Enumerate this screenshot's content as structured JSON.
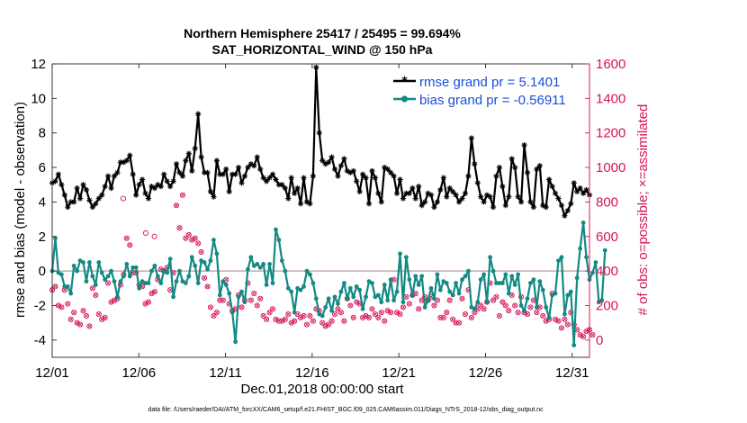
{
  "chart_data": {
    "type": "line",
    "title_line1": "Northern Hemisphere 25417 / 25495 = 99.694%",
    "title_line2": "SAT_HORIZONTAL_WIND @ 150 hPa",
    "xlabel": "Dec.01,2018 00:00:00 start",
    "ylabel_left": "rmse and bias (model - observation)",
    "ylabel_right": "# of obs: o=possible; ×=assimilated",
    "footnote": "data file: /Users/raeder/DAI/ATM_forcXX/CAM6_setup/f.e21.FHIST_BGC.f09_025.CAM6assim.011/Diags_NTrS_2018-12/obs_diag_output.nc",
    "xlim": [
      0,
      31
    ],
    "x_ticks": [
      0,
      5,
      10,
      15,
      20,
      25,
      30
    ],
    "x_tick_labels": [
      "12/01",
      "12/06",
      "12/11",
      "12/16",
      "12/21",
      "12/26",
      "12/31"
    ],
    "ylim_left": [
      -5,
      12
    ],
    "y_ticks_left": [
      -4,
      -2,
      0,
      2,
      4,
      6,
      8,
      10,
      12
    ],
    "ylim_right": [
      -100,
      1600
    ],
    "y_ticks_right": [
      0,
      200,
      400,
      600,
      800,
      1000,
      1200,
      1400,
      1600
    ],
    "colors": {
      "rmse": "#000000",
      "bias": "#138a84",
      "obs": "#d5145a",
      "zero_line": "#c8a9a9",
      "legend_text": "#1a4fd6"
    },
    "legend": {
      "placement": "top-right",
      "entries": [
        "rmse grand pr = 5.1401",
        "bias grand pr = -0.56911"
      ]
    },
    "series": [
      {
        "name": "rmse grand pr = 5.1401",
        "color": "#000000",
        "marker": "asterisk",
        "values": [
          5.1,
          5.2,
          5.6,
          5.0,
          4.4,
          3.7,
          4.0,
          4.0,
          4.8,
          4.2,
          5.0,
          4.7,
          4.1,
          3.7,
          3.9,
          4.2,
          4.4,
          4.9,
          5.5,
          4.8,
          5.5,
          5.7,
          6.3,
          6.3,
          6.4,
          6.7,
          5.6,
          4.4,
          5.0,
          5.3,
          4.5,
          4.2,
          4.9,
          4.8,
          5.0,
          4.9,
          5.6,
          5.2,
          4.9,
          5.2,
          6.2,
          5.7,
          5.5,
          6.4,
          6.8,
          5.8,
          7.1,
          9.1,
          6.6,
          5.7,
          5.7,
          4.6,
          4.3,
          6.4,
          5.6,
          5.6,
          5.9,
          4.6,
          5.6,
          5.6,
          6.0,
          5.1,
          5.5,
          6.0,
          6.2,
          6.1,
          6.6,
          5.9,
          5.4,
          5.2,
          5.4,
          5.6,
          5.3,
          5.0,
          5.0,
          4.8,
          4.2,
          5.4,
          4.5,
          4.8,
          3.9,
          5.4,
          4.0,
          3.9,
          5.5,
          11.8,
          8.0,
          6.4,
          6.2,
          6.3,
          6.6,
          5.9,
          5.5,
          6.1,
          6.5,
          5.8,
          5.7,
          5.8,
          5.2,
          4.6,
          5.6,
          5.4,
          3.9,
          5.8,
          5.4,
          4.5,
          4.0,
          6.0,
          5.9,
          5.7,
          5.5,
          4.5,
          5.3,
          4.2,
          4.5,
          4.5,
          4.8,
          4.2,
          4.9,
          3.8,
          4.0,
          4.5,
          4.4,
          3.7,
          4.0,
          4.7,
          5.4,
          4.3,
          4.8,
          4.6,
          4.4,
          4.0,
          4.2,
          4.5,
          5.5,
          7.7,
          6.2,
          5.1,
          4.3,
          4.0,
          4.4,
          4.3,
          3.7,
          5.5,
          6.0,
          4.9,
          3.8,
          4.3,
          6.5,
          6.0,
          4.3,
          4.0,
          7.3,
          5.7,
          4.0,
          3.7,
          5.9,
          6.1,
          3.8,
          3.7,
          5.3,
          4.9,
          4.5,
          4.2,
          3.8,
          3.2,
          3.5,
          3.9,
          5.1,
          4.6,
          4.8,
          4.5,
          4.7,
          4.4
        ]
      },
      {
        "name": "bias grand pr = -0.56911",
        "color": "#138a84",
        "marker": "circle",
        "values": [
          0.0,
          1.9,
          -0.1,
          -0.2,
          -0.9,
          -0.9,
          -1.3,
          0.3,
          0.0,
          0.6,
          0.5,
          -0.6,
          0.5,
          -0.3,
          -0.8,
          0.5,
          -0.1,
          -0.5,
          -0.3,
          0.0,
          -0.6,
          -1.5,
          -0.6,
          -0.3,
          0.4,
          -0.3,
          0.2,
          0.2,
          -1.0,
          -0.6,
          -0.7,
          -0.7,
          0.0,
          0.3,
          -0.3,
          -0.7,
          0.0,
          -0.1,
          0.7,
          -1.5,
          -0.6,
          0.0,
          -0.6,
          -0.7,
          -0.3,
          0.8,
          0.3,
          -0.7,
          0.6,
          0.5,
          0.1,
          0.6,
          1.8,
          1.0,
          -1.4,
          -0.6,
          -0.8,
          -1.3,
          -2.4,
          -4.1,
          -1.5,
          -1.2,
          -1.8,
          0.1,
          0.8,
          0.3,
          0.4,
          0.2,
          0.4,
          -0.8,
          0.4,
          -0.7,
          2.4,
          1.8,
          0.6,
          0.0,
          -1.0,
          -1.2,
          -2.4,
          -1.0,
          -1.1,
          -0.9,
          0.0,
          -0.2,
          -0.7,
          -1.6,
          -2.5,
          -2.6,
          -2.1,
          -1.6,
          -2.3,
          -1.5,
          -1.9,
          -1.2,
          -0.7,
          -1.6,
          -1.0,
          -1.5,
          -0.9,
          -1.1,
          -2.2,
          -1.5,
          -0.6,
          -0.7,
          -1.5,
          -1.4,
          -1.8,
          -0.8,
          -1.7,
          -0.5,
          -1.7,
          -1.2,
          1.0,
          -1.8,
          0.8,
          -0.5,
          -1.4,
          -0.3,
          -0.8,
          -0.3,
          -2.1,
          -1.7,
          -1.0,
          -1.6,
          -0.2,
          -1.1,
          -0.6,
          -0.7,
          -1.2,
          -1.4,
          -0.7,
          -1.3,
          -0.5,
          -0.3,
          0.0,
          -2.1,
          -2.2,
          -1.8,
          -0.5,
          -0.2,
          -1.8,
          0.8,
          0.0,
          -0.7,
          -0.7,
          -0.7,
          -0.2,
          -1.3,
          -0.3,
          -0.8,
          -0.2,
          -2.0,
          -2.3,
          -1.6,
          -0.7,
          -0.5,
          -2.1,
          -0.6,
          -1.1,
          -2.1,
          -2.7,
          -1.4,
          -1.3,
          0.6,
          0.8,
          -2.5,
          -1.4,
          -1.2,
          -4.3,
          -0.4,
          1.3,
          2.8,
          0.8,
          -0.5,
          -0.1,
          0.5,
          -1.8,
          -1.7,
          1.2
        ]
      },
      {
        "name": "# of obs assimilated",
        "color": "#d5145a",
        "marker": "cross-circle",
        "axis": "right",
        "values": [
          290,
          310,
          200,
          190,
          290,
          210,
          120,
          160,
          100,
          90,
          170,
          140,
          80,
          300,
          260,
          150,
          120,
          130,
          330,
          220,
          230,
          240,
          320,
          380,
          590,
          550,
          390,
          390,
          320,
          310,
          210,
          220,
          270,
          280,
          350,
          410,
          400,
          420,
          290,
          390,
          780,
          650,
          840,
          590,
          610,
          580,
          590,
          560,
          510,
          360,
          310,
          190,
          140,
          160,
          230,
          230,
          350,
          210,
          170,
          180,
          260,
          190,
          230,
          330,
          230,
          270,
          200,
          240,
          140,
          120,
          160,
          180,
          120,
          110,
          110,
          120,
          150,
          100,
          110,
          150,
          130,
          140,
          90,
          140,
          110,
          180,
          170,
          100,
          80,
          90,
          110,
          150,
          180,
          160,
          110,
          240,
          200,
          130,
          220,
          210,
          130,
          140,
          130,
          180,
          150,
          130,
          160,
          110,
          170,
          160,
          350,
          160,
          150,
          190,
          250,
          210,
          260,
          270,
          180,
          230,
          250,
          230,
          250,
          200,
          230,
          130,
          130,
          160,
          230,
          120,
          100,
          100,
          240,
          150,
          290,
          130,
          160,
          180,
          200,
          180,
          220,
          330,
          230,
          250,
          140,
          220,
          200,
          170,
          260,
          200,
          160,
          250,
          160,
          150,
          190,
          230,
          160,
          190,
          140,
          110,
          120,
          270,
          120,
          110,
          70,
          120,
          90,
          160,
          90,
          60,
          30,
          20,
          50,
          60,
          30
        ]
      },
      {
        "name": "# of obs possible",
        "color": "#d5145a",
        "marker": "open-circle",
        "axis": "right",
        "points": [
          [
            4.1,
            820
          ],
          [
            5.4,
            620
          ],
          [
            5.9,
            600
          ]
        ]
      }
    ]
  }
}
